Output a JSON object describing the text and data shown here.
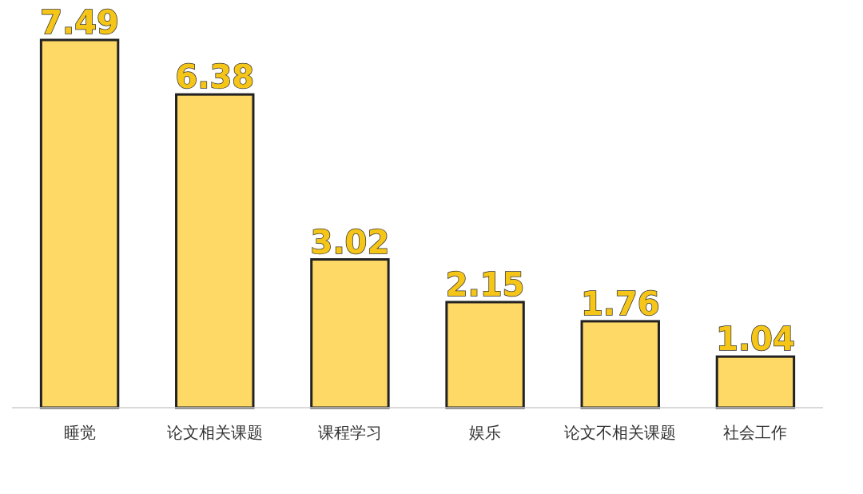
{
  "chart_data": {
    "type": "bar",
    "categories": [
      "睡觉",
      "论文相关课题",
      "课程学习",
      "娱乐",
      "论文不相关课题",
      "社会工作"
    ],
    "values": [
      7.49,
      6.38,
      3.02,
      2.15,
      1.76,
      1.04
    ],
    "color": "#ffd966",
    "data_labels": true
  }
}
